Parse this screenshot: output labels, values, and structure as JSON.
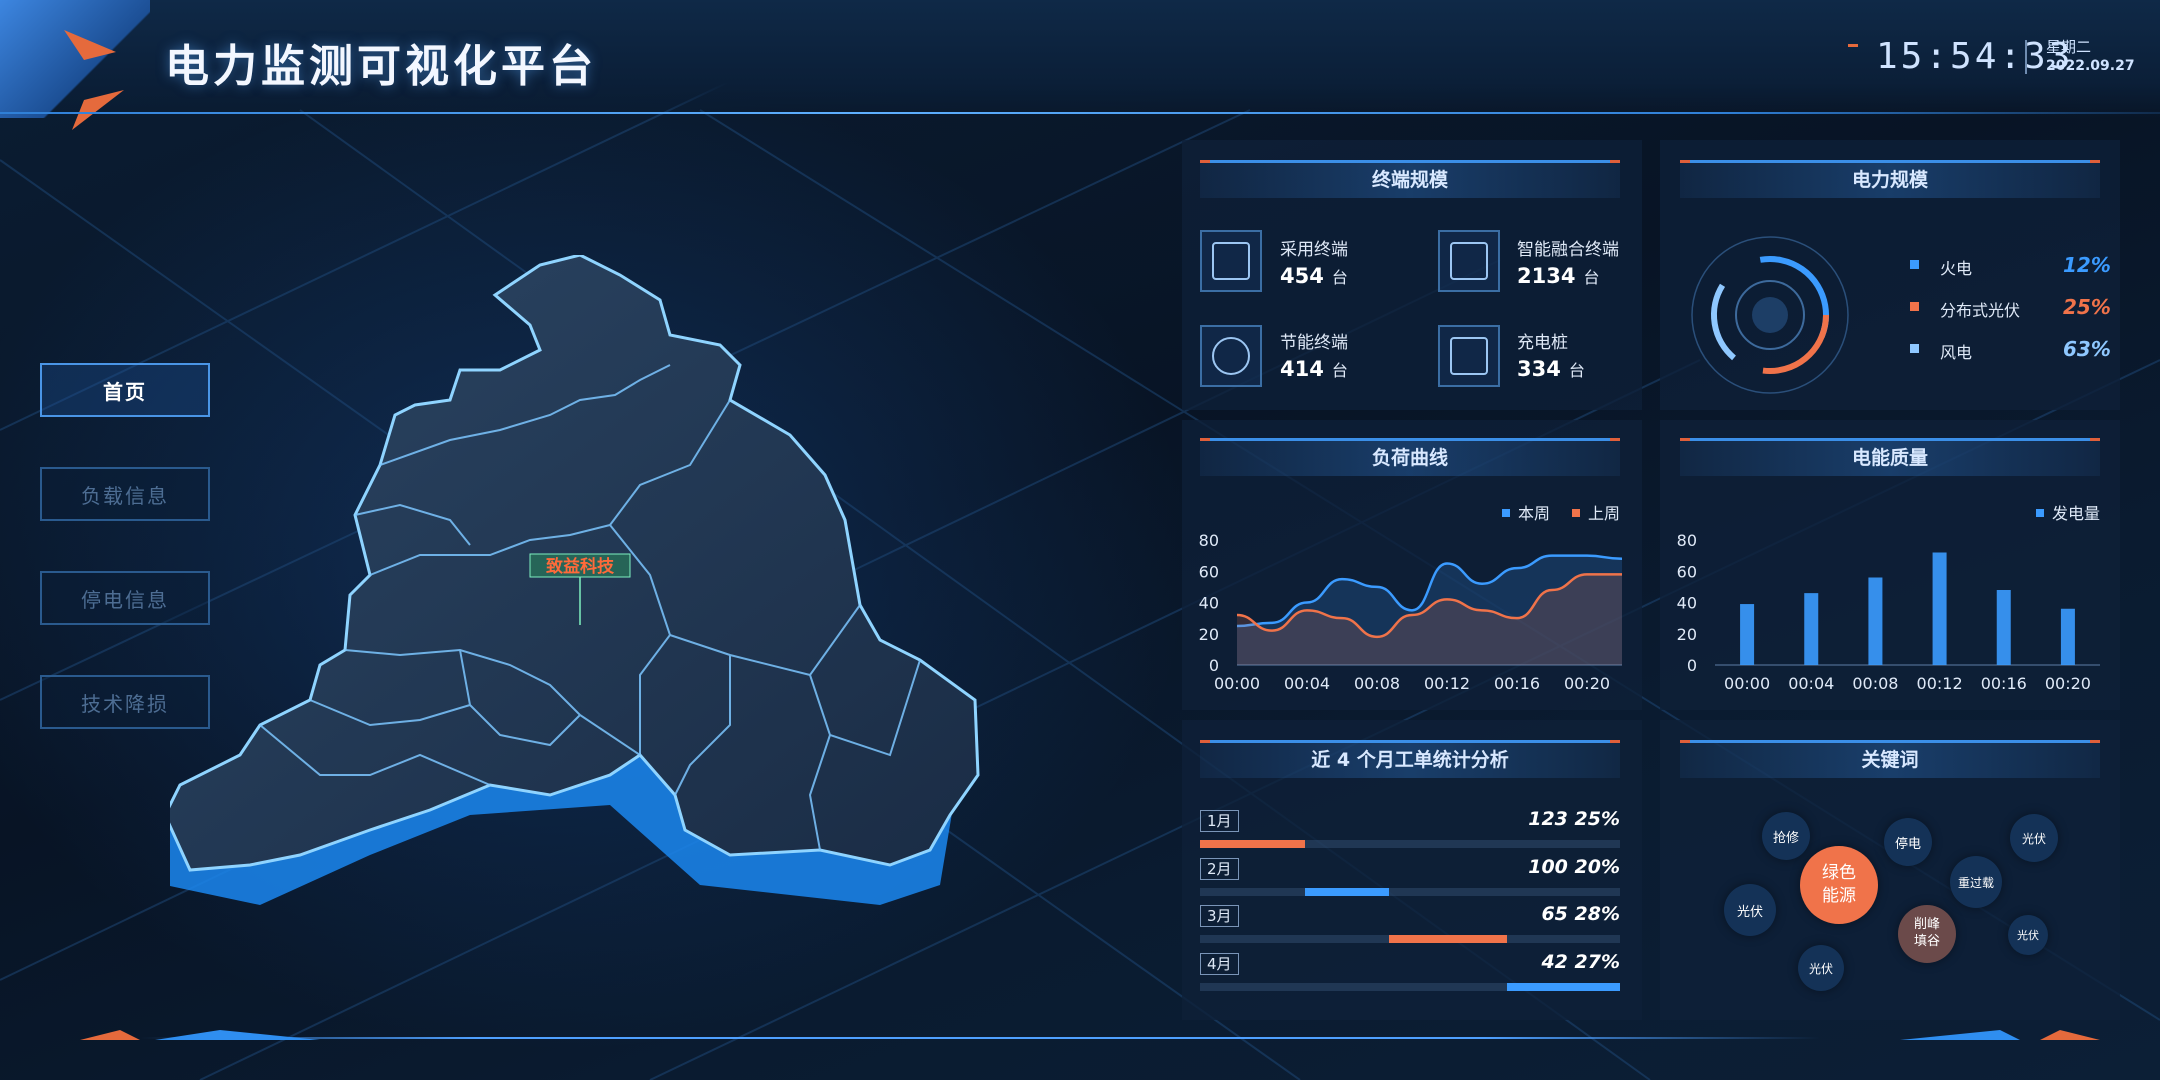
{
  "header": {
    "title": "电力监测可视化平台",
    "time": "15:54:33",
    "weekday": "星期二",
    "date": "2022.09.27"
  },
  "nav": [
    {
      "label": "首页",
      "active": true
    },
    {
      "label": "负载信息",
      "active": false
    },
    {
      "label": "停电信息",
      "active": false
    },
    {
      "label": "技术降损",
      "active": false
    }
  ],
  "map": {
    "marker_label": "致益科技"
  },
  "terminals": {
    "title": "终端规模",
    "items": [
      {
        "label": "采用终端",
        "value": "454",
        "unit": "台",
        "icon": "server-icon"
      },
      {
        "label": "智能融合终端",
        "value": "2134",
        "unit": "台",
        "icon": "cabinet-icon"
      },
      {
        "label": "节能终端",
        "value": "414",
        "unit": "台",
        "icon": "leaf-icon"
      },
      {
        "label": "充电桩",
        "value": "334",
        "unit": "台",
        "icon": "charger-icon"
      }
    ]
  },
  "power_scale": {
    "title": "电力规模",
    "items": [
      {
        "label": "火电",
        "percent": "12%",
        "color": "#3b9bff"
      },
      {
        "label": "分布式光伏",
        "percent": "25%",
        "color": "#f0734a"
      },
      {
        "label": "风电",
        "percent": "63%",
        "color": "#8fc8ff"
      }
    ]
  },
  "load_curve": {
    "title": "负荷曲线"
  },
  "power_quality": {
    "title": "电能质量"
  },
  "orders": {
    "title": "近 4 个月工单统计分析",
    "rows": [
      {
        "month": "1月",
        "count": "123",
        "percent": "25%",
        "start": 0.0,
        "end": 0.25,
        "color": "#f0734a"
      },
      {
        "month": "2月",
        "count": "100",
        "percent": "20%",
        "start": 0.25,
        "end": 0.45,
        "color": "#3b9bff"
      },
      {
        "month": "3月",
        "count": "65",
        "percent": "28%",
        "start": 0.45,
        "end": 0.73,
        "color": "#f0734a"
      },
      {
        "month": "4月",
        "count": "42",
        "percent": "27%",
        "start": 0.73,
        "end": 1.0,
        "color": "#3b9bff"
      }
    ]
  },
  "keywords": {
    "title": "关键词",
    "items": [
      {
        "text": "抢修"
      },
      {
        "text": "停电"
      },
      {
        "text": "光伏"
      },
      {
        "text": "绿色能源"
      },
      {
        "text": "重过载"
      },
      {
        "text": "光伏"
      },
      {
        "text": "削峰填谷"
      },
      {
        "text": "光伏"
      },
      {
        "text": "光伏"
      }
    ]
  },
  "chart_data": [
    {
      "type": "line",
      "x": [
        "00:00",
        "00:02",
        "00:04",
        "00:06",
        "00:08",
        "00:10",
        "00:12",
        "00:14",
        "00:16",
        "00:18",
        "00:20",
        "00:22"
      ],
      "series": [
        {
          "name": "本周",
          "color": "#3b9bff",
          "values": [
            25,
            27,
            40,
            55,
            50,
            35,
            65,
            52,
            62,
            70,
            70,
            68
          ]
        },
        {
          "name": "上周",
          "color": "#f0734a",
          "values": [
            32,
            22,
            35,
            30,
            18,
            32,
            42,
            35,
            30,
            48,
            58,
            58
          ]
        }
      ],
      "ylim": [
        0,
        80
      ],
      "yticks": [
        0,
        20,
        40,
        60,
        80
      ],
      "xticks": [
        "00:00",
        "00:04",
        "00:08",
        "00:12",
        "00:16",
        "00:20"
      ],
      "legend": "top-right"
    },
    {
      "type": "bar",
      "categories": [
        "00:00",
        "00:04",
        "00:08",
        "00:12",
        "00:16",
        "00:20"
      ],
      "series": [
        {
          "name": "发电量",
          "color": "#3b9bff",
          "values": [
            39,
            46,
            56,
            72,
            48,
            36
          ]
        }
      ],
      "ylim": [
        0,
        80
      ],
      "yticks": [
        0,
        20,
        40,
        60,
        80
      ],
      "legend": "top-right"
    }
  ]
}
